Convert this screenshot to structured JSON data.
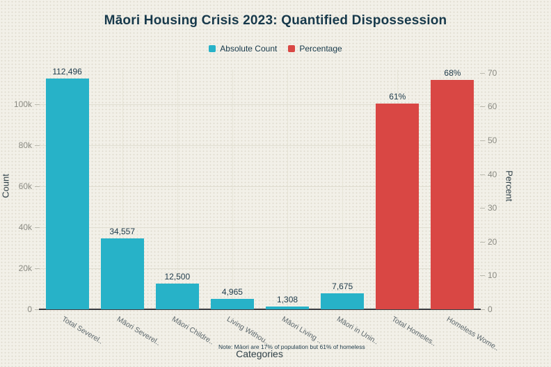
{
  "palette": {
    "background": "#f2f0e8",
    "text_dark": "#17394b",
    "tick_text": "#8b8b83",
    "count_color": "#27b2c8",
    "percent_color": "#d94744"
  },
  "chart_data": {
    "type": "bar",
    "title": "Māori Housing Crisis 2023: Quantified Dispossession",
    "xlabel": "Categories",
    "ylabel_left": "Count",
    "ylabel_right": "Percent",
    "note": "Note: Māori are 17% of population but 61% of homeless",
    "legend_position": "top-center",
    "grid": true,
    "categories": [
      "Total Severel..",
      "Māori Severel..",
      "Māori Childre..",
      "Living Withou..",
      "Māori Living ..",
      "Māori in Unin..",
      "Total Homeles..",
      "Homeless Wome.."
    ],
    "series": [
      {
        "name": "Absolute Count",
        "color": "#27b2c8",
        "axis": "left"
      },
      {
        "name": "Percentage",
        "color": "#d94744",
        "axis": "right"
      }
    ],
    "bars": [
      {
        "category": "Total Severel..",
        "series": 0,
        "value": 112496,
        "label": "112,496"
      },
      {
        "category": "Māori Severel..",
        "series": 0,
        "value": 34557,
        "label": "34,557"
      },
      {
        "category": "Māori Childre..",
        "series": 0,
        "value": 12500,
        "label": "12,500"
      },
      {
        "category": "Living Withou..",
        "series": 0,
        "value": 4965,
        "label": "4,965"
      },
      {
        "category": "Māori Living ..",
        "series": 0,
        "value": 1308,
        "label": "1,308"
      },
      {
        "category": "Māori in Unin..",
        "series": 0,
        "value": 7675,
        "label": "7,675"
      },
      {
        "category": "Total Homeles..",
        "series": 1,
        "value": 61,
        "label": "61%"
      },
      {
        "category": "Homeless Wome..",
        "series": 1,
        "value": 68,
        "label": "68%"
      }
    ],
    "left_axis": {
      "max": 117000,
      "ticks": [
        {
          "value": 0,
          "label": "0"
        },
        {
          "value": 20000,
          "label": "20k"
        },
        {
          "value": 40000,
          "label": "40k"
        },
        {
          "value": 60000,
          "label": "60k"
        },
        {
          "value": 80000,
          "label": "80k"
        },
        {
          "value": 100000,
          "label": "100k"
        }
      ]
    },
    "right_axis": {
      "max": 71,
      "ticks": [
        {
          "value": 0,
          "label": "0"
        },
        {
          "value": 10,
          "label": "10"
        },
        {
          "value": 20,
          "label": "20"
        },
        {
          "value": 30,
          "label": "30"
        },
        {
          "value": 40,
          "label": "40"
        },
        {
          "value": 50,
          "label": "50"
        },
        {
          "value": 60,
          "label": "60"
        },
        {
          "value": 70,
          "label": "70"
        }
      ]
    }
  }
}
